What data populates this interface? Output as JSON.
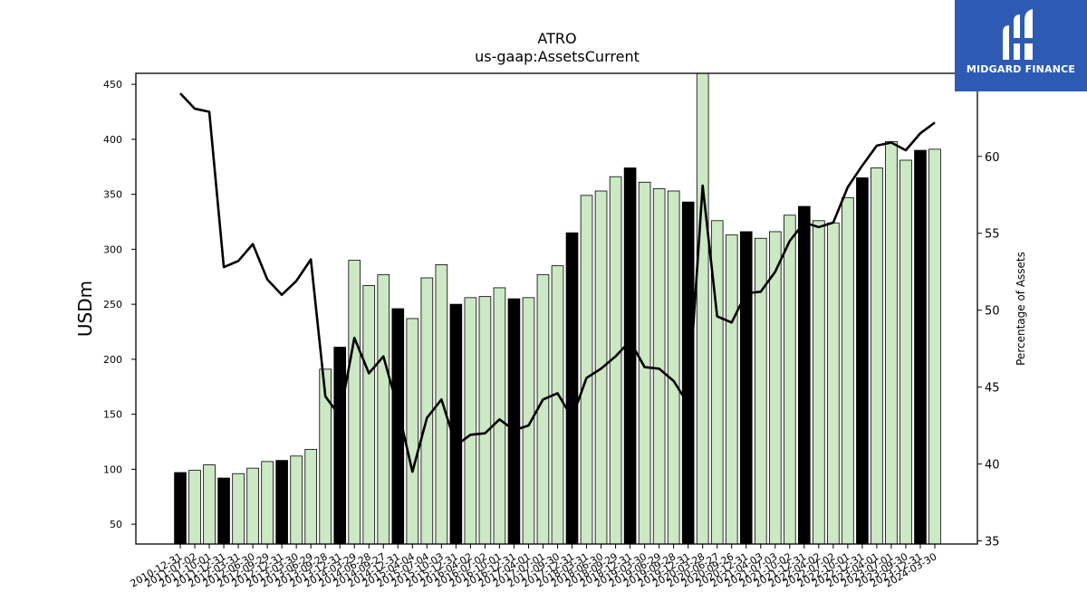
{
  "chart_data": {
    "type": "bar",
    "title": "ATRO",
    "subtitle": "us-gaap:AssetsCurrent",
    "ylabel": "USDm",
    "ylabel_right": "Percentage of Assets",
    "ylim": [
      32,
      460
    ],
    "ylim_right": [
      34.8,
      65.4
    ],
    "yticks": [
      50,
      100,
      150,
      200,
      250,
      300,
      350,
      400,
      450
    ],
    "yticks_right": [
      35,
      40,
      45,
      50,
      55,
      60
    ],
    "bar_colors": {
      "annual": "#000000",
      "quarterly": "#cce8c4",
      "edge": "#000000"
    },
    "line_color": "#000000",
    "xtick_labels": [
      "2010-12-31",
      "2011-07-02",
      "2011-10-01",
      "2011-12-31",
      "2012-03-31",
      "2012-06-30",
      "2012-09-29",
      "2012-12-31",
      "2013-03-30",
      "2013-06-29",
      "2013-09-28",
      "2013-12-31",
      "2014-03-29",
      "2014-06-28",
      "2014-09-27",
      "2014-12-31",
      "2015-04-04",
      "2015-07-04",
      "2015-10-03",
      "2015-12-31",
      "2016-04-02",
      "2016-07-02",
      "2016-10-01",
      "2016-12-31",
      "2017-04-01",
      "2017-07-01",
      "2017-09-30",
      "2017-12-31",
      "2018-03-31",
      "2018-06-30",
      "2018-09-29",
      "2018-12-31",
      "2019-03-30",
      "2019-06-29",
      "2019-09-28",
      "2019-12-31",
      "2020-03-28",
      "2020-06-27",
      "2020-09-26",
      "2020-12-31",
      "2021-04-03",
      "2021-07-03",
      "2021-10-02",
      "2021-12-31",
      "2022-04-02",
      "2022-07-02",
      "2022-10-01",
      "2022-12-31",
      "2023-04-01",
      "2023-07-01",
      "2023-09-30",
      "2023-12-31",
      "2024-03-30"
    ],
    "annual": [
      1,
      0,
      0,
      1,
      0,
      0,
      0,
      1,
      0,
      0,
      0,
      1,
      0,
      0,
      0,
      1,
      0,
      0,
      0,
      1,
      0,
      0,
      0,
      1,
      0,
      0,
      0,
      1,
      0,
      0,
      0,
      1,
      0,
      0,
      0,
      1,
      0,
      0,
      0,
      1,
      0,
      0,
      0,
      1,
      0,
      0,
      0,
      1,
      0,
      0,
      0,
      1,
      0
    ],
    "values": [
      97,
      99,
      104,
      92,
      96,
      101,
      107,
      108,
      112,
      118,
      191,
      211,
      290,
      267,
      277,
      246,
      237,
      274,
      286,
      250,
      256,
      257,
      265,
      255,
      256,
      277,
      285,
      315,
      349,
      353,
      366,
      374,
      361,
      355,
      353,
      343,
      460,
      326,
      313,
      316,
      310,
      316,
      331,
      339,
      326,
      324,
      347,
      365,
      374,
      398,
      381,
      390,
      391
    ],
    "pct_of_assets": [
      64.1,
      63.1,
      62.9,
      52.8,
      53.2,
      54.3,
      52.0,
      51.0,
      51.9,
      53.3,
      44.4,
      43.1,
      48.2,
      45.9,
      47.0,
      43.6,
      39.5,
      43.0,
      44.2,
      41.2,
      41.9,
      42.0,
      42.9,
      42.2,
      42.5,
      44.2,
      44.6,
      43.0,
      45.6,
      46.2,
      47.0,
      48.0,
      46.3,
      46.2,
      45.4,
      43.9,
      58.1,
      49.6,
      49.2,
      51.1,
      51.2,
      52.5,
      54.5,
      55.7,
      55.4,
      55.7,
      58.0,
      59.4,
      60.7,
      60.9,
      60.4,
      61.5,
      62.2
    ]
  }
}
